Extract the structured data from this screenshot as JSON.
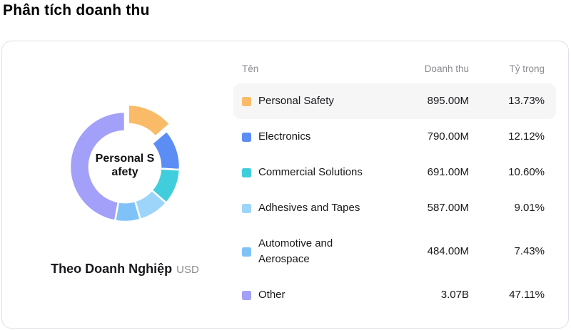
{
  "page": {
    "title": "Phân tích doanh thu"
  },
  "footer": {
    "label": "Theo Doanh Nghiệp",
    "unit": "USD"
  },
  "donut": {
    "center_lines": [
      "Personal S",
      "afety"
    ]
  },
  "table": {
    "headers": {
      "name": "Tên",
      "revenue": "Doanh thu",
      "share": "Tỷ trọng"
    }
  },
  "chart_data": {
    "type": "pie",
    "title": "Phân tích doanh thu",
    "subtitle": "Theo Doanh Nghiệp",
    "unit": "USD",
    "donut": true,
    "inner_radius_ratio": 0.65,
    "legend_position": "right",
    "selected_index": 0,
    "selected_label": "Personal Safety",
    "categories": [
      "Personal Safety",
      "Electronics",
      "Commercial Solutions",
      "Adhesives and Tapes",
      "Automotive and Aerospace",
      "Other"
    ],
    "values_display": [
      "895.00M",
      "790.00M",
      "691.00M",
      "587.00M",
      "484.00M",
      "3.07B"
    ],
    "values_usd": [
      895000000,
      790000000,
      691000000,
      587000000,
      484000000,
      3070000000
    ],
    "percentages": [
      13.73,
      12.12,
      10.6,
      9.01,
      7.43,
      47.11
    ],
    "colors": [
      "#F9BB68",
      "#5B8DF5",
      "#41CEDC",
      "#9CD5F9",
      "#7FC2F8",
      "#A2A0F8"
    ]
  }
}
